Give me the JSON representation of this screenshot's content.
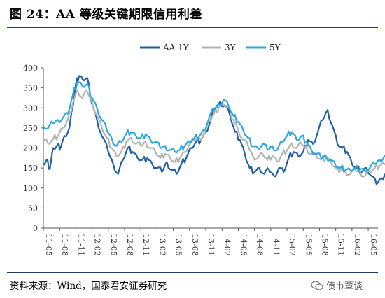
{
  "title": "图 24：AA 等级关键期限信用利差",
  "source": "资料来源：Wind，国泰君安证券研究",
  "watermark": "债市覃谈",
  "chart_data": {
    "type": "line",
    "ylim": [
      0,
      400
    ],
    "yticks": [
      0,
      50,
      100,
      150,
      200,
      250,
      300,
      350,
      400
    ],
    "xticks": [
      "11-05",
      "11-08",
      "11-11",
      "12-02",
      "12-05",
      "12-08",
      "12-11",
      "13-02",
      "13-05",
      "13-08",
      "13-11",
      "14-02",
      "14-05",
      "14-08",
      "14-11",
      "15-02",
      "15-05",
      "15-08",
      "15-11",
      "16-02",
      "16-05"
    ],
    "series": [
      {
        "name": "AA 1Y",
        "color": "#1f5fa6",
        "values": [
          [
            0,
            160
          ],
          [
            0.2,
            170
          ],
          [
            0.4,
            148
          ],
          [
            0.6,
            200
          ],
          [
            0.9,
            210
          ],
          [
            1.0,
            195
          ],
          [
            1.3,
            230
          ],
          [
            1.6,
            250
          ],
          [
            1.8,
            300
          ],
          [
            2.0,
            360
          ],
          [
            2.2,
            380
          ],
          [
            2.4,
            372
          ],
          [
            2.7,
            375
          ],
          [
            3.0,
            310
          ],
          [
            3.3,
            270
          ],
          [
            3.6,
            230
          ],
          [
            4.0,
            190
          ],
          [
            4.3,
            160
          ],
          [
            4.6,
            135
          ],
          [
            4.9,
            170
          ],
          [
            5.2,
            200
          ],
          [
            5.5,
            190
          ],
          [
            5.8,
            175
          ],
          [
            6.1,
            170
          ],
          [
            6.4,
            175
          ],
          [
            6.7,
            160
          ],
          [
            7.0,
            150
          ],
          [
            7.3,
            140
          ],
          [
            7.6,
            165
          ],
          [
            7.9,
            145
          ],
          [
            8.2,
            135
          ],
          [
            8.5,
            160
          ],
          [
            8.8,
            175
          ],
          [
            9.1,
            200
          ],
          [
            9.4,
            215
          ],
          [
            9.7,
            220
          ],
          [
            10.0,
            240
          ],
          [
            10.3,
            270
          ],
          [
            10.6,
            300
          ],
          [
            10.9,
            315
          ],
          [
            11.2,
            305
          ],
          [
            11.5,
            280
          ],
          [
            11.8,
            240
          ],
          [
            12.1,
            220
          ],
          [
            12.4,
            185
          ],
          [
            12.7,
            150
          ],
          [
            13.0,
            140
          ],
          [
            13.3,
            150
          ],
          [
            13.6,
            135
          ],
          [
            13.9,
            145
          ],
          [
            14.2,
            130
          ],
          [
            14.5,
            150
          ],
          [
            14.8,
            140
          ],
          [
            15.1,
            175
          ],
          [
            15.4,
            190
          ],
          [
            15.7,
            180
          ],
          [
            16.0,
            190
          ],
          [
            16.3,
            220
          ],
          [
            16.6,
            210
          ],
          [
            16.9,
            240
          ],
          [
            17.2,
            270
          ],
          [
            17.5,
            295
          ],
          [
            17.8,
            255
          ],
          [
            18.1,
            210
          ],
          [
            18.4,
            200
          ],
          [
            18.7,
            190
          ],
          [
            19.0,
            160
          ],
          [
            19.3,
            150
          ],
          [
            19.6,
            140
          ],
          [
            19.9,
            150
          ],
          [
            20.2,
            130
          ],
          [
            20.5,
            110
          ],
          [
            20.8,
            125
          ],
          [
            21.1,
            140
          ],
          [
            21.4,
            150
          ],
          [
            21.6,
            148
          ]
        ]
      },
      {
        "name": "3Y",
        "color": "#b3b3b3",
        "values": [
          [
            0,
            220
          ],
          [
            0.3,
            210
          ],
          [
            0.6,
            222
          ],
          [
            0.9,
            230
          ],
          [
            1.2,
            250
          ],
          [
            1.5,
            270
          ],
          [
            1.8,
            310
          ],
          [
            2.1,
            345
          ],
          [
            2.4,
            325
          ],
          [
            2.7,
            340
          ],
          [
            3.0,
            315
          ],
          [
            3.3,
            280
          ],
          [
            3.6,
            250
          ],
          [
            3.9,
            225
          ],
          [
            4.2,
            200
          ],
          [
            4.5,
            180
          ],
          [
            4.8,
            190
          ],
          [
            5.1,
            215
          ],
          [
            5.4,
            225
          ],
          [
            5.7,
            210
          ],
          [
            6.0,
            205
          ],
          [
            6.3,
            215
          ],
          [
            6.6,
            200
          ],
          [
            6.9,
            190
          ],
          [
            7.2,
            175
          ],
          [
            7.5,
            185
          ],
          [
            7.8,
            175
          ],
          [
            8.1,
            165
          ],
          [
            8.4,
            175
          ],
          [
            8.7,
            190
          ],
          [
            9.0,
            210
          ],
          [
            9.3,
            220
          ],
          [
            9.6,
            225
          ],
          [
            9.9,
            235
          ],
          [
            10.2,
            265
          ],
          [
            10.5,
            285
          ],
          [
            10.8,
            300
          ],
          [
            11.1,
            310
          ],
          [
            11.4,
            300
          ],
          [
            11.7,
            270
          ],
          [
            12.0,
            245
          ],
          [
            12.3,
            220
          ],
          [
            12.6,
            205
          ],
          [
            12.9,
            180
          ],
          [
            13.2,
            175
          ],
          [
            13.5,
            185
          ],
          [
            13.8,
            170
          ],
          [
            14.1,
            180
          ],
          [
            14.4,
            165
          ],
          [
            14.7,
            185
          ],
          [
            15.0,
            195
          ],
          [
            15.3,
            210
          ],
          [
            15.6,
            200
          ],
          [
            15.9,
            210
          ],
          [
            16.2,
            200
          ],
          [
            16.5,
            185
          ],
          [
            16.8,
            180
          ],
          [
            17.1,
            170
          ],
          [
            17.4,
            175
          ],
          [
            17.7,
            165
          ],
          [
            18.0,
            150
          ],
          [
            18.3,
            145
          ],
          [
            18.6,
            140
          ],
          [
            18.9,
            135
          ],
          [
            19.2,
            145
          ],
          [
            19.5,
            140
          ],
          [
            19.8,
            130
          ],
          [
            20.1,
            140
          ],
          [
            20.4,
            150
          ],
          [
            20.7,
            155
          ],
          [
            21.0,
            160
          ],
          [
            21.3,
            165
          ],
          [
            21.6,
            162
          ]
        ]
      },
      {
        "name": "5Y",
        "color": "#2aa9e0",
        "values": [
          [
            0,
            255
          ],
          [
            0.3,
            250
          ],
          [
            0.6,
            262
          ],
          [
            0.9,
            270
          ],
          [
            1.2,
            275
          ],
          [
            1.5,
            285
          ],
          [
            1.8,
            330
          ],
          [
            2.1,
            365
          ],
          [
            2.4,
            355
          ],
          [
            2.7,
            360
          ],
          [
            3.0,
            325
          ],
          [
            3.3,
            300
          ],
          [
            3.6,
            270
          ],
          [
            3.9,
            245
          ],
          [
            4.2,
            225
          ],
          [
            4.5,
            205
          ],
          [
            4.8,
            215
          ],
          [
            5.1,
            235
          ],
          [
            5.4,
            240
          ],
          [
            5.7,
            230
          ],
          [
            6.0,
            225
          ],
          [
            6.3,
            235
          ],
          [
            6.6,
            220
          ],
          [
            6.9,
            215
          ],
          [
            7.2,
            200
          ],
          [
            7.5,
            205
          ],
          [
            7.8,
            195
          ],
          [
            8.1,
            190
          ],
          [
            8.4,
            195
          ],
          [
            8.7,
            205
          ],
          [
            9.0,
            215
          ],
          [
            9.3,
            225
          ],
          [
            9.6,
            230
          ],
          [
            9.9,
            245
          ],
          [
            10.2,
            275
          ],
          [
            10.5,
            295
          ],
          [
            10.8,
            310
          ],
          [
            11.1,
            320
          ],
          [
            11.4,
            305
          ],
          [
            11.7,
            280
          ],
          [
            12.0,
            265
          ],
          [
            12.3,
            245
          ],
          [
            12.6,
            225
          ],
          [
            12.9,
            205
          ],
          [
            13.2,
            200
          ],
          [
            13.5,
            210
          ],
          [
            13.8,
            195
          ],
          [
            14.1,
            205
          ],
          [
            14.4,
            195
          ],
          [
            14.7,
            215
          ],
          [
            15.0,
            230
          ],
          [
            15.3,
            240
          ],
          [
            15.6,
            220
          ],
          [
            15.9,
            230
          ],
          [
            16.2,
            215
          ],
          [
            16.5,
            195
          ],
          [
            16.8,
            185
          ],
          [
            17.1,
            175
          ],
          [
            17.4,
            180
          ],
          [
            17.7,
            170
          ],
          [
            18.0,
            155
          ],
          [
            18.3,
            150
          ],
          [
            18.6,
            145
          ],
          [
            18.9,
            145
          ],
          [
            19.2,
            150
          ],
          [
            19.5,
            148
          ],
          [
            19.8,
            145
          ],
          [
            20.1,
            150
          ],
          [
            20.4,
            160
          ],
          [
            20.7,
            170
          ],
          [
            21.0,
            180
          ],
          [
            21.3,
            182
          ],
          [
            21.6,
            175
          ]
        ]
      }
    ],
    "legend_position": "top-center",
    "grid": false
  }
}
